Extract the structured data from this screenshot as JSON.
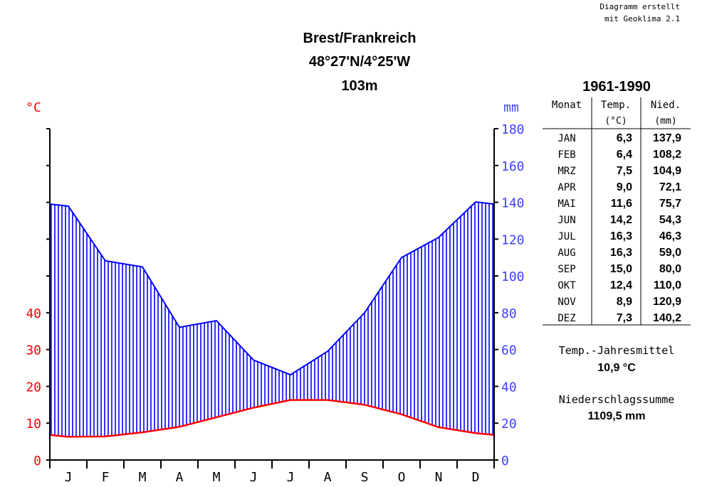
{
  "credit": [
    "Diagramm erstellt",
    "mit Geoklima 2.1"
  ],
  "station": {
    "name": "Brest/Frankreich",
    "coords": "48°27'N/4°25'W",
    "elevation": "103m"
  },
  "colors": {
    "temperature": "#ff0000",
    "precipitation": "#0000ff",
    "axis": "#000000",
    "temp_labels": "#ff0000",
    "precip_labels": "#4040ff"
  },
  "chart_data": {
    "type": "line",
    "title": "Brest/Frankreich",
    "categories": [
      "J",
      "F",
      "M",
      "A",
      "M",
      "J",
      "J",
      "A",
      "S",
      "O",
      "N",
      "D"
    ],
    "series": [
      {
        "name": "Temp.",
        "unit": "°C",
        "axis": "left",
        "values": [
          6.3,
          6.4,
          7.5,
          9.0,
          11.6,
          14.2,
          16.3,
          16.3,
          15.0,
          12.4,
          8.9,
          7.3
        ]
      },
      {
        "name": "Nied.",
        "unit": "mm",
        "axis": "right",
        "values": [
          137.9,
          108.2,
          104.9,
          72.1,
          75.7,
          54.3,
          46.3,
          59.0,
          80.0,
          110.0,
          120.9,
          140.2
        ]
      }
    ],
    "ylabel_left": "°C",
    "ylabel_right": "mm",
    "ylim_left": [
      0,
      90
    ],
    "ylim_right": [
      0,
      180
    ],
    "yticks_left": [
      "0",
      "10",
      "20",
      "30",
      "40"
    ],
    "yticks_right": [
      "0",
      "20",
      "40",
      "60",
      "80",
      "100",
      "120",
      "140",
      "160",
      "180"
    ],
    "precip_fill": "vertical-hatch",
    "grid": false
  },
  "table": {
    "period": "1961-1990",
    "headers": {
      "month": "Monat",
      "temp_line1": "Temp.",
      "temp_line2": "(°C)",
      "precip_line1": "Nied.",
      "precip_line2": "(mm)"
    },
    "rows": [
      {
        "month": "JAN",
        "temp": "6,3",
        "precip": "137,9"
      },
      {
        "month": "FEB",
        "temp": "6,4",
        "precip": "108,2"
      },
      {
        "month": "MRZ",
        "temp": "7,5",
        "precip": "104,9"
      },
      {
        "month": "APR",
        "temp": "9,0",
        "precip": "72,1"
      },
      {
        "month": "MAI",
        "temp": "11,6",
        "precip": "75,7"
      },
      {
        "month": "JUN",
        "temp": "14,2",
        "precip": "54,3"
      },
      {
        "month": "JUL",
        "temp": "16,3",
        "precip": "46,3"
      },
      {
        "month": "AUG",
        "temp": "16,3",
        "precip": "59,0"
      },
      {
        "month": "SEP",
        "temp": "15,0",
        "precip": "80,0"
      },
      {
        "month": "OKT",
        "temp": "12,4",
        "precip": "110,0"
      },
      {
        "month": "NOV",
        "temp": "8,9",
        "precip": "120,9"
      },
      {
        "month": "DEZ",
        "temp": "7,3",
        "precip": "140,2"
      }
    ]
  },
  "summary": {
    "mean_temp_label": "Temp.-Jahresmittel",
    "mean_temp_value": "10,9 °C",
    "precip_sum_label": "Niederschlagssumme",
    "precip_sum_value": "1109,5 mm"
  }
}
